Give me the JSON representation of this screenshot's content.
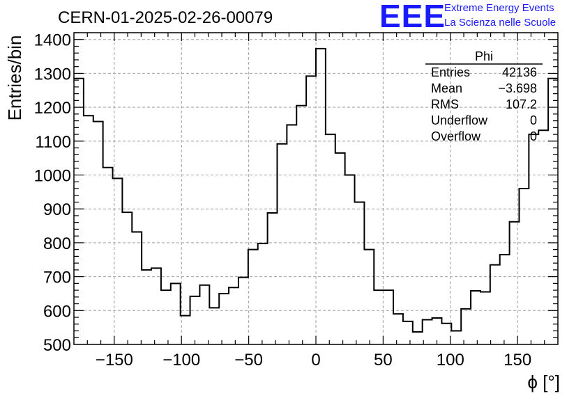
{
  "header": {
    "title": "CERN-01-2025-02-26-00079",
    "logo_text": "EEE",
    "logo_line1": "Extreme Energy Events",
    "logo_line2": "La Scienza nelle Scuole"
  },
  "stats": {
    "name": "Phi",
    "rows": [
      {
        "label": "Entries",
        "value": "42136"
      },
      {
        "label": "Mean",
        "value": "−3.698"
      },
      {
        "label": "RMS",
        "value": "107.2"
      },
      {
        "label": "Underflow",
        "value": "0"
      },
      {
        "label": "Overflow",
        "value": "0"
      }
    ]
  },
  "chart_data": {
    "type": "bar",
    "title": "CERN-01-2025-02-26-00079",
    "xlabel": "ϕ [°]",
    "ylabel": "Entries/bin",
    "xlim": [
      -180,
      180
    ],
    "ylim": [
      500,
      1420
    ],
    "bin_width": 7.2,
    "grid": true,
    "xticks": [
      -150,
      -100,
      -50,
      0,
      50,
      100,
      150
    ],
    "yticks": [
      500,
      600,
      700,
      800,
      900,
      1000,
      1100,
      1200,
      1300,
      1400
    ],
    "values": [
      1285,
      1175,
      1158,
      1022,
      990,
      890,
      832,
      720,
      725,
      660,
      680,
      585,
      642,
      675,
      608,
      650,
      668,
      698,
      780,
      798,
      888,
      1092,
      1148,
      1205,
      1292,
      1373,
      1120,
      1065,
      1000,
      920,
      780,
      660,
      660,
      590,
      568,
      537,
      573,
      578,
      562,
      540,
      605,
      658,
      655,
      735,
      765,
      862,
      960,
      1120,
      1132,
      1285
    ],
    "line_color": "#000000",
    "grid_color": "#a0a0a0",
    "accent_color": "#1a1aff"
  }
}
